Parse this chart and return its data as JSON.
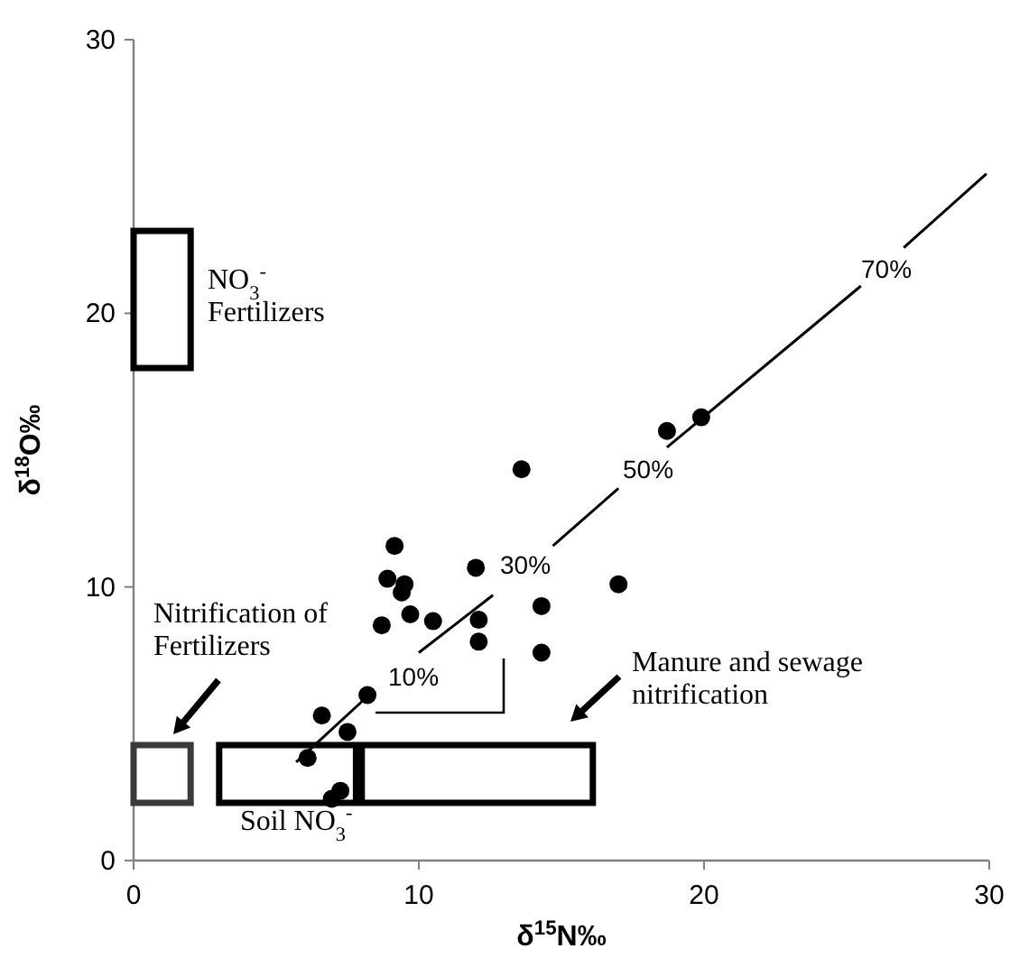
{
  "chart_data": {
    "type": "scatter",
    "xlabel": "δ$^{15}$N‰",
    "ylabel": "δ$^{18}$O‰",
    "xlim": [
      0,
      30
    ],
    "ylim": [
      0,
      30
    ],
    "xticks": [
      0,
      10,
      20,
      30
    ],
    "yticks": [
      0,
      10,
      20,
      30
    ],
    "grid": false,
    "series": [
      {
        "type": "line",
        "color": "#000000",
        "x": [
          5.7,
          8.2,
          9.1,
          10.0,
          12.6,
          13.6,
          14.7,
          17.0,
          17.9,
          18.7,
          25.5,
          26.2,
          27.0,
          29.9
        ],
        "values": [
          3.6,
          6.0,
          null,
          7.6,
          9.7,
          null,
          11.5,
          13.6,
          null,
          15.1,
          21.0,
          null,
          22.4,
          25.1
        ]
      },
      {
        "marker": "circle",
        "color": "#000000",
        "x": [
          13.6,
          9.15,
          12.0,
          8.9,
          9.5,
          9.4,
          17.0,
          9.7,
          10.5,
          8.7,
          12.1,
          14.3,
          12.1,
          14.3,
          8.2,
          6.6,
          7.5,
          6.1,
          6.95,
          7.25,
          18.7,
          19.9
        ],
        "values": [
          14.3,
          11.5,
          10.7,
          10.3,
          10.1,
          9.8,
          10.1,
          9.0,
          8.75,
          8.6,
          8.8,
          9.3,
          8.0,
          7.6,
          6.05,
          5.3,
          4.7,
          3.75,
          2.26,
          2.55,
          15.7,
          16.2
        ]
      }
    ],
    "annotations": [
      "Nitrification of\nFertilizers",
      "NO$_{3}$$^{-}$\nFertilizers",
      "Soil NO$_{3}$$^{-}$",
      "Manure and sewage\nnitrification",
      "10%",
      "30%",
      "50%",
      "70%"
    ]
  }
}
